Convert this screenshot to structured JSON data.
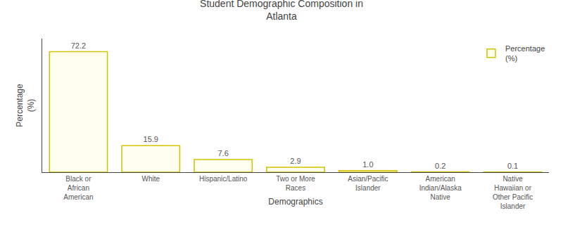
{
  "chart_data": {
    "type": "bar",
    "title": "Student Demographic Composition in\nAtlanta",
    "x_label": "Demographics",
    "y_label": "Percentage\n(%)",
    "categories": [
      "Black or\nAfrican\nAmerican",
      "White",
      "Hispanic/Latino",
      "Two or More\nRaces",
      "Asian/Pacific\nIslander",
      "American\nIndian/Alaska\nNative",
      "Native\nHawaiian or\nOther Pacific\nIslander"
    ],
    "series": [
      {
        "name": "Percentage\n(%)",
        "color": "#FFFFF0",
        "values": [
          72.2,
          15.9,
          7.6,
          2.9,
          1.0,
          0.2,
          0.1
        ],
        "value_labels": [
          "72.2",
          "15.9",
          "7.6",
          "2.9",
          "1.0",
          "0.2",
          "0.1"
        ]
      }
    ],
    "ylim": [
      0,
      80
    ],
    "yticks": [],
    "tick_labels": "x",
    "data_labels": true,
    "grid": false,
    "legend": "upper right"
  }
}
